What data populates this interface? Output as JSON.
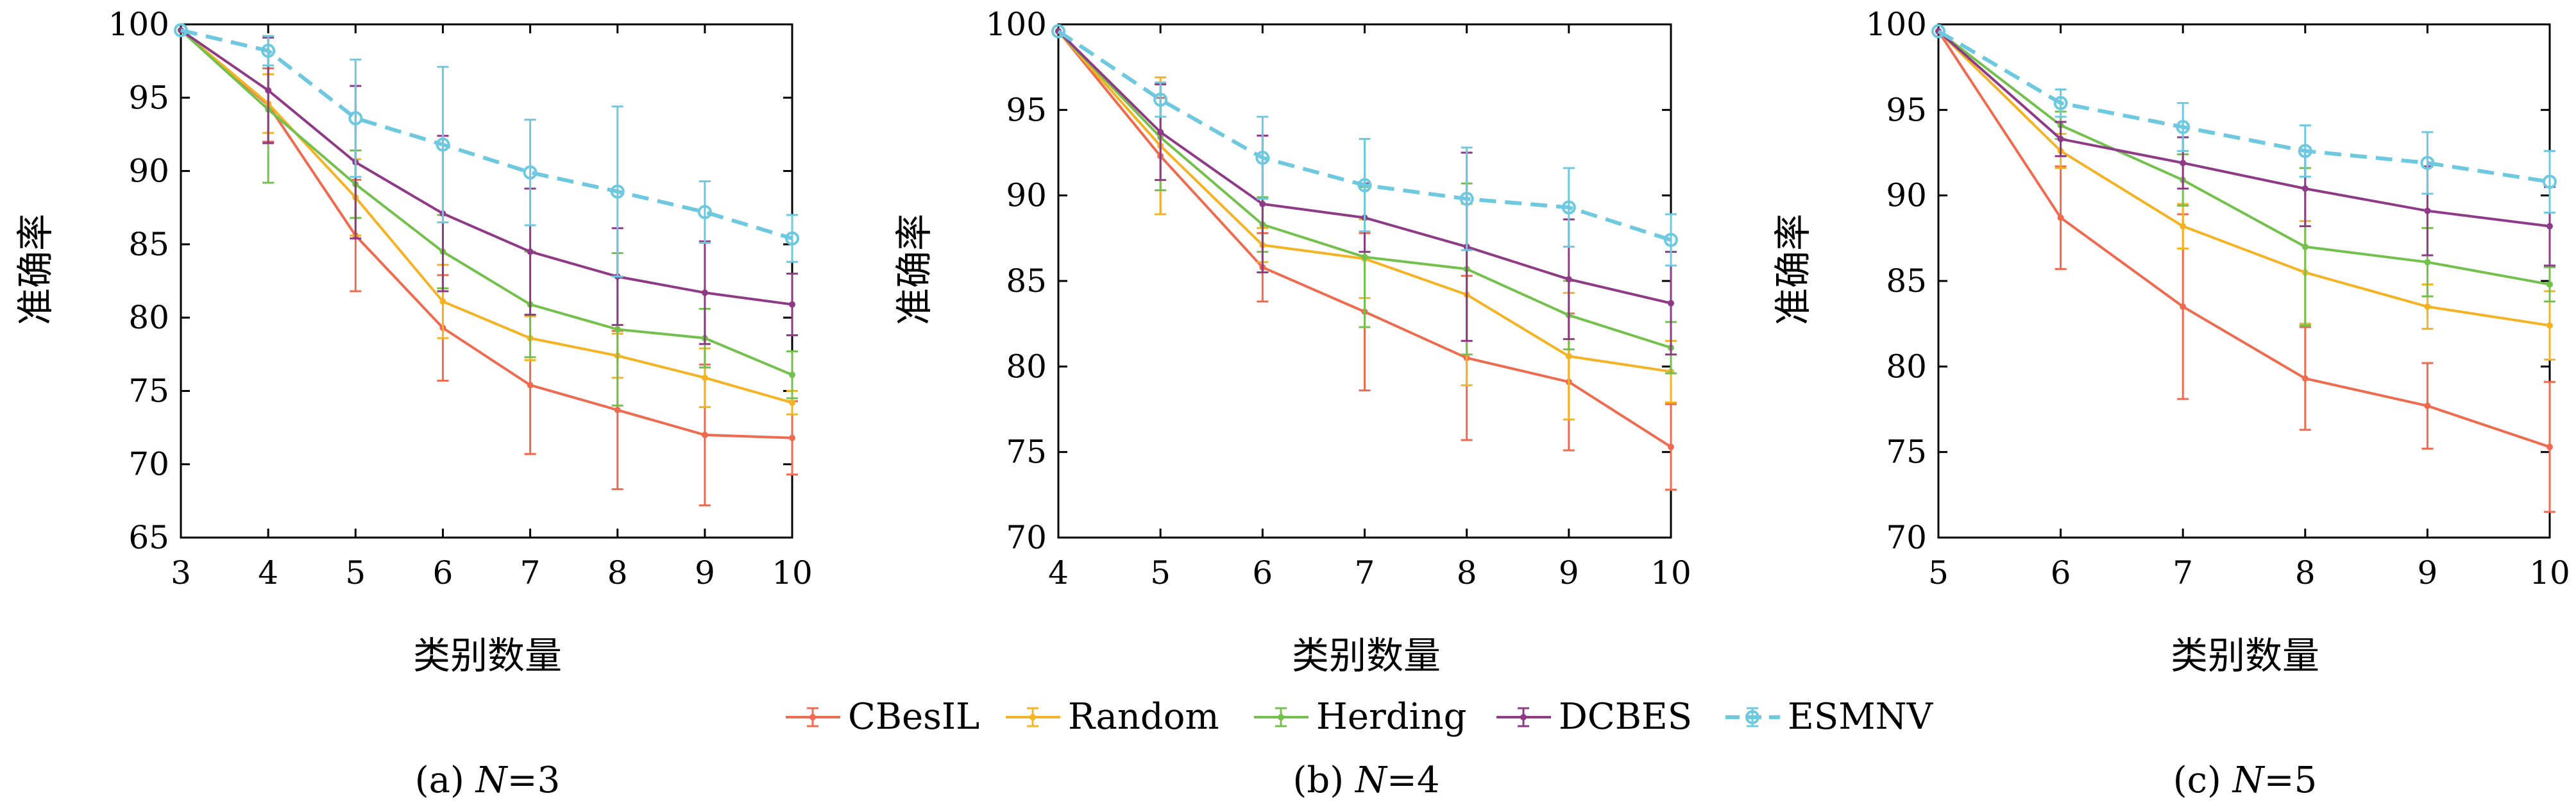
{
  "colors": {
    "CBesIL": "#ef6b4f",
    "Random": "#f4b323",
    "Herding": "#74c04c",
    "DCBES": "#8e3a86",
    "ESMNV": "#6ec9e0"
  },
  "legend": [
    "CBesIL",
    "Random",
    "Herding",
    "DCBES",
    "ESMNV"
  ],
  "chart_data": [
    {
      "type": "line",
      "caption": "(a) N=3",
      "caption_prefix": "(a) ",
      "caption_var": "N",
      "caption_value": "=3",
      "xlabel": "类别数量",
      "ylabel": "准确率",
      "xlim": [
        3,
        10
      ],
      "ylim": [
        65,
        100
      ],
      "xticks": [
        3,
        4,
        5,
        6,
        7,
        8,
        9,
        10
      ],
      "yticks": [
        65,
        70,
        75,
        80,
        85,
        90,
        95,
        100
      ],
      "x": [
        3,
        4,
        5,
        6,
        7,
        8,
        9,
        10
      ],
      "series": [
        {
          "name": "CBesIL",
          "values": [
            99.6,
            94.5,
            85.6,
            79.3,
            75.4,
            73.7,
            72.0,
            71.8
          ],
          "errors": [
            0,
            2.5,
            3.8,
            3.6,
            4.7,
            5.4,
            4.8,
            2.5
          ]
        },
        {
          "name": "Random",
          "values": [
            99.6,
            94.6,
            88.2,
            81.1,
            78.6,
            77.4,
            75.9,
            74.2
          ],
          "errors": [
            0,
            2.0,
            2.6,
            2.5,
            1.5,
            1.5,
            2.0,
            0.8
          ]
        },
        {
          "name": "Herding",
          "values": [
            99.6,
            94.2,
            89.1,
            84.5,
            80.9,
            79.2,
            78.6,
            76.1
          ],
          "errors": [
            0,
            5.0,
            2.3,
            2.5,
            3.6,
            5.2,
            2.0,
            1.6
          ]
        },
        {
          "name": "DCBES",
          "values": [
            99.6,
            95.5,
            90.6,
            87.1,
            84.5,
            82.8,
            81.7,
            80.9
          ],
          "errors": [
            0,
            3.6,
            5.2,
            5.3,
            4.3,
            3.3,
            3.5,
            2.1
          ]
        },
        {
          "name": "ESMNV",
          "values": [
            99.6,
            98.2,
            93.6,
            91.8,
            89.9,
            88.6,
            87.2,
            85.4
          ],
          "errors": [
            0,
            1.0,
            4.0,
            5.3,
            3.6,
            5.8,
            2.1,
            1.6
          ]
        }
      ]
    },
    {
      "type": "line",
      "caption": "(b) N=4",
      "caption_prefix": "(b) ",
      "caption_var": "N",
      "caption_value": "=4",
      "xlabel": "类别数量",
      "ylabel": "准确率",
      "xlim": [
        4,
        10
      ],
      "ylim": [
        70,
        100
      ],
      "xticks": [
        4,
        5,
        6,
        7,
        8,
        9,
        10
      ],
      "yticks": [
        70,
        75,
        80,
        85,
        90,
        95,
        100
      ],
      "x": [
        4,
        5,
        6,
        7,
        8,
        9,
        10
      ],
      "series": [
        {
          "name": "CBesIL",
          "values": [
            99.6,
            92.3,
            85.8,
            83.2,
            80.5,
            79.1,
            75.3
          ],
          "errors": [
            0,
            3.4,
            2.0,
            4.6,
            4.8,
            4.0,
            2.5
          ]
        },
        {
          "name": "Random",
          "values": [
            99.6,
            92.9,
            87.1,
            86.3,
            84.2,
            80.6,
            79.7
          ],
          "errors": [
            0,
            4.0,
            1.0,
            2.3,
            5.3,
            3.7,
            1.8
          ]
        },
        {
          "name": "Herding",
          "values": [
            99.6,
            93.4,
            88.3,
            86.4,
            85.7,
            83.0,
            81.1
          ],
          "errors": [
            0,
            3.1,
            1.6,
            4.1,
            5.0,
            2.0,
            1.5
          ]
        },
        {
          "name": "DCBES",
          "values": [
            99.6,
            93.7,
            89.5,
            88.7,
            87.0,
            85.1,
            83.7
          ],
          "errors": [
            0,
            2.8,
            4.0,
            2.0,
            5.5,
            3.5,
            3.0
          ]
        },
        {
          "name": "ESMNV",
          "values": [
            99.6,
            95.6,
            92.2,
            90.6,
            89.8,
            89.3,
            87.4
          ],
          "errors": [
            0,
            1.0,
            2.4,
            2.7,
            3.0,
            2.3,
            1.5
          ]
        }
      ]
    },
    {
      "type": "line",
      "caption": "(c) N=5",
      "caption_prefix": "(c) ",
      "caption_var": "N",
      "caption_value": "=5",
      "xlabel": "类别数量",
      "ylabel": "准确率",
      "xlim": [
        5,
        10
      ],
      "ylim": [
        70,
        100
      ],
      "xticks": [
        5,
        6,
        7,
        8,
        9,
        10
      ],
      "yticks": [
        70,
        75,
        80,
        85,
        90,
        95,
        100
      ],
      "x": [
        5,
        6,
        7,
        8,
        9,
        10
      ],
      "series": [
        {
          "name": "CBesIL",
          "values": [
            99.6,
            88.7,
            83.5,
            79.3,
            77.7,
            75.3
          ],
          "errors": [
            0,
            3.0,
            5.4,
            3.0,
            2.5,
            3.8
          ]
        },
        {
          "name": "Random",
          "values": [
            99.6,
            92.6,
            88.2,
            85.5,
            83.5,
            82.4
          ],
          "errors": [
            0,
            1.0,
            1.3,
            3.0,
            1.3,
            2.0
          ]
        },
        {
          "name": "Herding",
          "values": [
            99.6,
            94.1,
            90.9,
            87.0,
            86.1,
            84.8
          ],
          "errors": [
            0,
            0.8,
            1.5,
            4.6,
            2.0,
            1.0
          ]
        },
        {
          "name": "DCBES",
          "values": [
            99.6,
            93.3,
            91.9,
            90.4,
            89.1,
            88.2
          ],
          "errors": [
            0,
            1.0,
            1.5,
            2.2,
            2.6,
            2.3
          ]
        },
        {
          "name": "ESMNV",
          "values": [
            99.6,
            95.4,
            94.0,
            92.6,
            91.9,
            90.8
          ],
          "errors": [
            0,
            0.8,
            1.4,
            1.5,
            1.8,
            1.8
          ]
        }
      ]
    }
  ]
}
